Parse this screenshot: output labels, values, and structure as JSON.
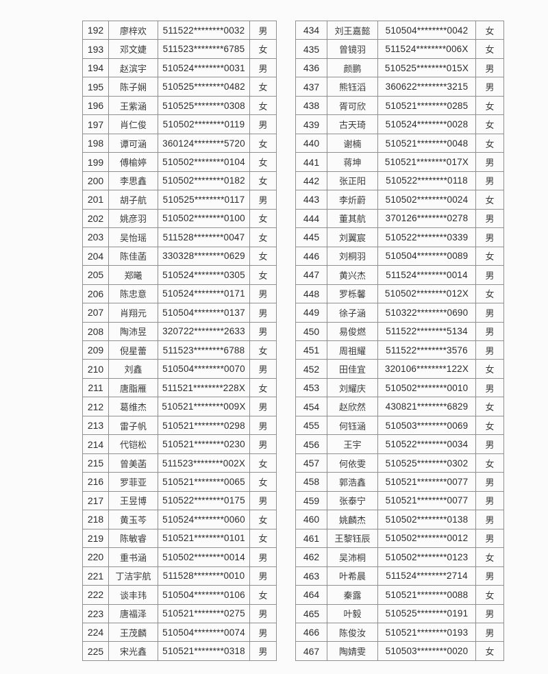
{
  "page": {
    "background_color": "#fbfbfb",
    "text_color": "#2e2e2e",
    "border_color": "#8f8f8f"
  },
  "tables": [
    {
      "name": "left-roster-table",
      "rows": [
        {
          "no": "192",
          "name": "廖梓欢",
          "id": "511522********0032",
          "gender": "男"
        },
        {
          "no": "193",
          "name": "邓文婕",
          "id": "511523********6785",
          "gender": "女"
        },
        {
          "no": "194",
          "name": "赵滨宇",
          "id": "510524********0031",
          "gender": "男"
        },
        {
          "no": "195",
          "name": "陈子娴",
          "id": "510525********0482",
          "gender": "女"
        },
        {
          "no": "196",
          "name": "王紫涵",
          "id": "510525********0308",
          "gender": "女"
        },
        {
          "no": "197",
          "name": "肖仁俊",
          "id": "510502********0119",
          "gender": "男"
        },
        {
          "no": "198",
          "name": "谭可涵",
          "id": "360124********5720",
          "gender": "女"
        },
        {
          "no": "199",
          "name": "傅榆婷",
          "id": "510502********0104",
          "gender": "女"
        },
        {
          "no": "200",
          "name": "李思鑫",
          "id": "510502********0182",
          "gender": "女"
        },
        {
          "no": "201",
          "name": "胡子航",
          "id": "510525********0117",
          "gender": "男"
        },
        {
          "no": "202",
          "name": "姚彦羽",
          "id": "510502********0100",
          "gender": "女"
        },
        {
          "no": "203",
          "name": "吴怡瑶",
          "id": "511528********0047",
          "gender": "女"
        },
        {
          "no": "204",
          "name": "陈佳菡",
          "id": "330328********0629",
          "gender": "女"
        },
        {
          "no": "205",
          "name": "郑曦",
          "id": "510524********0305",
          "gender": "女"
        },
        {
          "no": "206",
          "name": "陈忠意",
          "id": "510524********0171",
          "gender": "男"
        },
        {
          "no": "207",
          "name": "肖翔元",
          "id": "510504********0137",
          "gender": "男"
        },
        {
          "no": "208",
          "name": "陶沛昱",
          "id": "320722********2633",
          "gender": "男"
        },
        {
          "no": "209",
          "name": "倪星蕾",
          "id": "511523********6788",
          "gender": "女"
        },
        {
          "no": "210",
          "name": "刘鑫",
          "id": "510504********0070",
          "gender": "男"
        },
        {
          "no": "211",
          "name": "唐脂雁",
          "id": "511521********228X",
          "gender": "女"
        },
        {
          "no": "212",
          "name": "葛维杰",
          "id": "510521********009X",
          "gender": "男"
        },
        {
          "no": "213",
          "name": "雷子帆",
          "id": "510521********0298",
          "gender": "男"
        },
        {
          "no": "214",
          "name": "代铠松",
          "id": "510521********0230",
          "gender": "男"
        },
        {
          "no": "215",
          "name": "曾美菡",
          "id": "511523********002X",
          "gender": "女"
        },
        {
          "no": "216",
          "name": "罗菲亚",
          "id": "510521********0065",
          "gender": "女"
        },
        {
          "no": "217",
          "name": "王昱博",
          "id": "510522********0175",
          "gender": "男"
        },
        {
          "no": "218",
          "name": "黄玉芩",
          "id": "510524********0060",
          "gender": "女"
        },
        {
          "no": "219",
          "name": "陈敏睿",
          "id": "510521********0101",
          "gender": "女"
        },
        {
          "no": "220",
          "name": "重书涵",
          "id": "510502********0014",
          "gender": "男"
        },
        {
          "no": "221",
          "name": "丁洁宇航",
          "id": "511528********0010",
          "gender": "男"
        },
        {
          "no": "222",
          "name": "谈丰玮",
          "id": "510504********0106",
          "gender": "女"
        },
        {
          "no": "223",
          "name": "唐福泽",
          "id": "510521********0275",
          "gender": "男"
        },
        {
          "no": "224",
          "name": "王茂麟",
          "id": "510504********0074",
          "gender": "男"
        },
        {
          "no": "225",
          "name": "宋光鑫",
          "id": "510521********0318",
          "gender": "男"
        }
      ]
    },
    {
      "name": "right-roster-table",
      "rows": [
        {
          "no": "434",
          "name": "刘王嘉懿",
          "id": "510504********0042",
          "gender": "女"
        },
        {
          "no": "435",
          "name": "曾镜羽",
          "id": "511524********006X",
          "gender": "女"
        },
        {
          "no": "436",
          "name": "颜鹏",
          "id": "510525********015X",
          "gender": "男"
        },
        {
          "no": "437",
          "name": "熊钰滔",
          "id": "360622********3215",
          "gender": "男"
        },
        {
          "no": "438",
          "name": "胥可欣",
          "id": "510521********0285",
          "gender": "女"
        },
        {
          "no": "439",
          "name": "古天琦",
          "id": "510524********0028",
          "gender": "女"
        },
        {
          "no": "440",
          "name": "谢楠",
          "id": "510521********0048",
          "gender": "女"
        },
        {
          "no": "441",
          "name": "蒋坤",
          "id": "510521********017X",
          "gender": "男"
        },
        {
          "no": "442",
          "name": "张正阳",
          "id": "510522********0118",
          "gender": "男"
        },
        {
          "no": "443",
          "name": "李炘蔚",
          "id": "510502********0024",
          "gender": "女"
        },
        {
          "no": "444",
          "name": "董其航",
          "id": "370126********0278",
          "gender": "男"
        },
        {
          "no": "445",
          "name": "刘翼宸",
          "id": "510522********0339",
          "gender": "男"
        },
        {
          "no": "446",
          "name": "刘桐羽",
          "id": "510504********0089",
          "gender": "女"
        },
        {
          "no": "447",
          "name": "黄兴杰",
          "id": "511524********0014",
          "gender": "男"
        },
        {
          "no": "448",
          "name": "罗栎馨",
          "id": "510502********012X",
          "gender": "女"
        },
        {
          "no": "449",
          "name": "徐子涵",
          "id": "510322********0690",
          "gender": "男"
        },
        {
          "no": "450",
          "name": "易俊燃",
          "id": "511522********5134",
          "gender": "男"
        },
        {
          "no": "451",
          "name": "周祖耀",
          "id": "511522********3576",
          "gender": "男"
        },
        {
          "no": "452",
          "name": "田佳宜",
          "id": "320106********122X",
          "gender": "女"
        },
        {
          "no": "453",
          "name": "刘耀庆",
          "id": "510502********0010",
          "gender": "男"
        },
        {
          "no": "454",
          "name": "赵欣然",
          "id": "430821********6829",
          "gender": "女"
        },
        {
          "no": "455",
          "name": "何钰涵",
          "id": "510503********0069",
          "gender": "女"
        },
        {
          "no": "456",
          "name": "王宇",
          "id": "510522********0034",
          "gender": "男"
        },
        {
          "no": "457",
          "name": "何依雯",
          "id": "510525********0302",
          "gender": "女"
        },
        {
          "no": "458",
          "name": "郭浩鑫",
          "id": "510521********0077",
          "gender": "男"
        },
        {
          "no": "459",
          "name": "张泰宁",
          "id": "510521********0077",
          "gender": "男"
        },
        {
          "no": "460",
          "name": "姚麟杰",
          "id": "510502********0138",
          "gender": "男"
        },
        {
          "no": "461",
          "name": "王黎钰辰",
          "id": "510502********0012",
          "gender": "男"
        },
        {
          "no": "462",
          "name": "吴沛桐",
          "id": "510502********0123",
          "gender": "女"
        },
        {
          "no": "463",
          "name": "叶希晨",
          "id": "511524********2714",
          "gender": "男"
        },
        {
          "no": "464",
          "name": "秦露",
          "id": "510521********0088",
          "gender": "女"
        },
        {
          "no": "465",
          "name": "叶毅",
          "id": "510525********0191",
          "gender": "男"
        },
        {
          "no": "466",
          "name": "陈俊汝",
          "id": "510521********0193",
          "gender": "男"
        },
        {
          "no": "467",
          "name": "陶婧雯",
          "id": "510503********0020",
          "gender": "女"
        }
      ]
    }
  ]
}
